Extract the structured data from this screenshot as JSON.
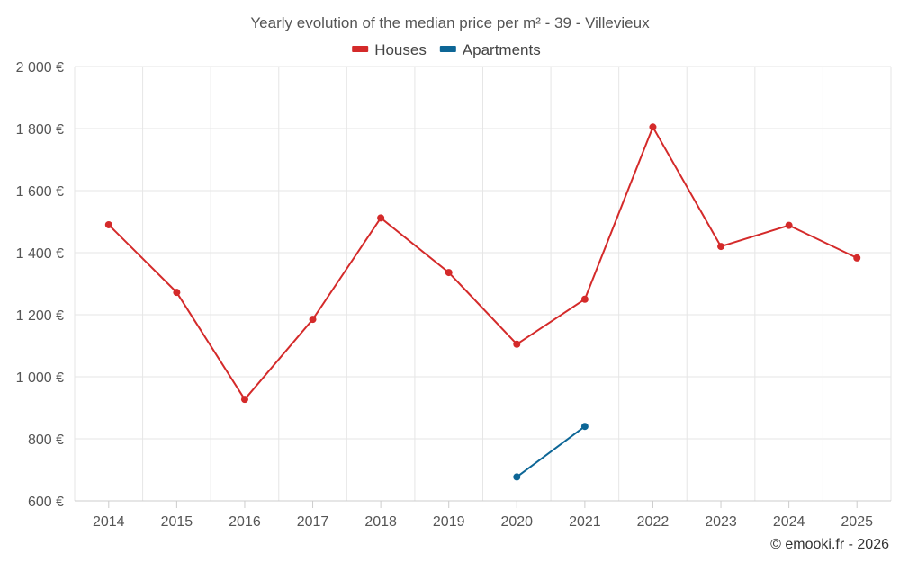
{
  "chart_data": {
    "type": "line",
    "title": "Yearly evolution of the median price per m² - 39 - Villevieux",
    "categories": [
      "2014",
      "2015",
      "2016",
      "2017",
      "2018",
      "2019",
      "2020",
      "2021",
      "2022",
      "2023",
      "2024",
      "2025"
    ],
    "series": [
      {
        "name": "Houses",
        "color": "#d42a2a",
        "values": [
          1490,
          1272,
          927,
          1185,
          1512,
          1336,
          1105,
          1250,
          1805,
          1420,
          1488,
          1383
        ]
      },
      {
        "name": "Apartments",
        "color": "#0d6696",
        "values": [
          null,
          null,
          null,
          null,
          null,
          null,
          677,
          840,
          null,
          null,
          null,
          null
        ]
      }
    ],
    "ylim": [
      600,
      2000
    ],
    "yticks": [
      600,
      800,
      1000,
      1200,
      1400,
      1600,
      1800,
      2000
    ],
    "ytick_labels": [
      "600 €",
      "800 €",
      "1 000 €",
      "1 200 €",
      "1 400 €",
      "1 600 €",
      "1 800 €",
      "2 000 €"
    ],
    "legend": "top-center",
    "grid": true
  },
  "credit": "© emooki.fr - 2026"
}
